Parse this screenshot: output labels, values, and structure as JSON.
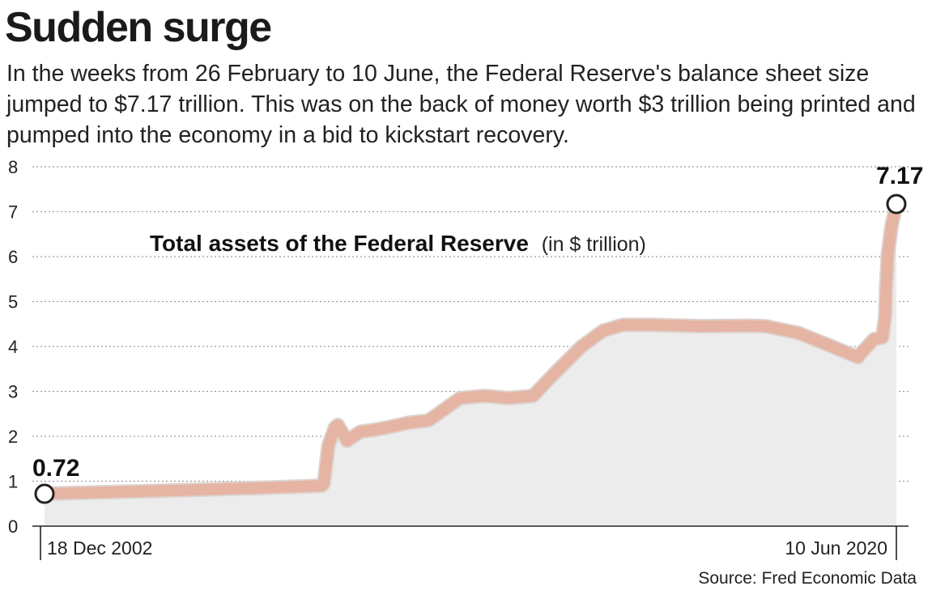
{
  "header": {
    "title": "Sudden surge",
    "subtitle": "In the weeks from 26 February to 10 June, the Federal Reserve's balance sheet size jumped to $7.17 trillion. This was on the back of money worth $3 trillion being printed and pumped into the economy in a bid to kickstart recovery."
  },
  "chart_data": {
    "type": "area",
    "title": "Total assets of the Federal Reserve",
    "ylabel_unit": "(in $ trillion)",
    "source": "Source: Fred Economic Data",
    "ylim": [
      0,
      8
    ],
    "yticks": [
      "0",
      "1",
      "2",
      "3",
      "4",
      "5",
      "6",
      "7",
      "8"
    ],
    "grid": true,
    "x_start_label": "18 Dec 2002",
    "x_end_label": "10 Jun 2020",
    "start_value_label": "0.72",
    "end_value_label": "7.17",
    "line_color": "#e6b4a2",
    "fill_color": "#ececec",
    "series": [
      {
        "x": [
          "2002-12-18",
          "2004-06-01",
          "2005-06-01",
          "2006-06-01",
          "2007-06-01",
          "2008-08-27",
          "2008-09-10",
          "2008-10-15",
          "2008-12-03",
          "2008-12-24",
          "2009-03-04",
          "2009-06-10",
          "2009-10-07",
          "2010-01-06",
          "2010-06-02",
          "2010-11-03",
          "2011-03-02",
          "2011-06-29",
          "2011-12-28",
          "2012-06-27",
          "2012-12-26",
          "2013-06-05",
          "2013-12-25",
          "2014-06-04",
          "2014-10-29",
          "2015-06-03",
          "2016-06-01",
          "2017-06-07",
          "2017-10-04",
          "2018-06-06",
          "2019-01-02",
          "2019-08-28",
          "2019-09-18",
          "2019-12-25",
          "2020-02-26",
          "2020-03-18",
          "2020-03-25",
          "2020-04-08",
          "2020-05-06",
          "2020-06-10"
        ],
        "y": [
          0.72,
          0.76,
          0.79,
          0.82,
          0.85,
          0.9,
          0.95,
          1.8,
          2.2,
          2.25,
          1.9,
          2.1,
          2.15,
          2.2,
          2.3,
          2.35,
          2.6,
          2.85,
          2.9,
          2.85,
          2.9,
          3.4,
          4.0,
          4.35,
          4.48,
          4.48,
          4.45,
          4.46,
          4.45,
          4.3,
          4.05,
          3.76,
          3.85,
          4.16,
          4.2,
          4.67,
          5.3,
          6.08,
          6.7,
          7.17
        ]
      }
    ]
  }
}
